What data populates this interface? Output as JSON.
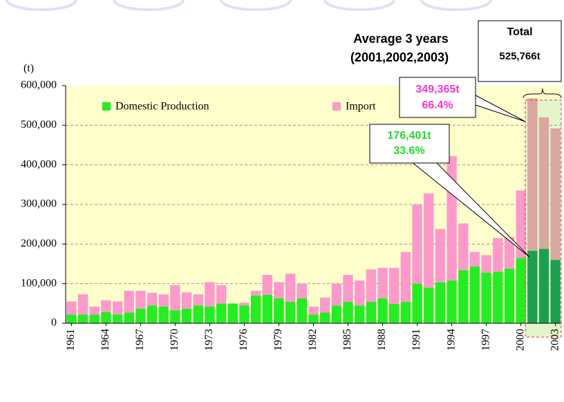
{
  "chart_data": {
    "type": "stacked_bar",
    "y_unit": "(t)",
    "categories": [
      "1961",
      null,
      null,
      "1964",
      null,
      null,
      "1967",
      null,
      null,
      "1970",
      null,
      null,
      "1973",
      null,
      null,
      "1976",
      null,
      null,
      "1979",
      null,
      null,
      "1982",
      null,
      null,
      "1985",
      null,
      null,
      "1988",
      null,
      null,
      "1991",
      null,
      null,
      "1994",
      null,
      null,
      "1997",
      null,
      null,
      "2000",
      null,
      null,
      "2003"
    ],
    "series": [
      {
        "name": "Domestic Production",
        "color": "#22ee22",
        "highlight_color": "#1aa050",
        "values": [
          22000,
          22000,
          22000,
          28000,
          22000,
          27000,
          37000,
          45000,
          42000,
          33000,
          37000,
          45000,
          42000,
          50000,
          50000,
          45000,
          70000,
          72000,
          63000,
          54000,
          63000,
          22000,
          27000,
          45000,
          54000,
          45000,
          54000,
          63000,
          49000,
          54000,
          100000,
          90000,
          103000,
          108000,
          134000,
          143000,
          128000,
          130000,
          138000,
          165000,
          183000,
          188000,
          160000
        ]
      },
      {
        "name": "Import",
        "color": "#ff99cc",
        "highlight_color": "#d9a8a0",
        "values": [
          33000,
          51000,
          20000,
          30000,
          33000,
          55000,
          45000,
          32000,
          31000,
          63000,
          41000,
          28000,
          62000,
          46000,
          0,
          7000,
          12000,
          50000,
          41000,
          71000,
          37000,
          20000,
          38000,
          55000,
          68000,
          63000,
          82000,
          77000,
          91000,
          126000,
          200000,
          238000,
          135000,
          314000,
          118000,
          37000,
          44000,
          85000,
          80000,
          170000,
          385000,
          332000,
          332000
        ]
      }
    ],
    "highlight_range": [
      40,
      42
    ],
    "ylim": [
      0,
      600000
    ],
    "yticks": [
      0,
      {
        "value": 100000,
        "label": "100,000"
      },
      {
        "value": 200000,
        "label": "200,000"
      },
      {
        "value": 300000,
        "label": "300,000"
      },
      {
        "value": 400000,
        "label": "400,000"
      },
      {
        "value": 500000,
        "label": "500,000"
      },
      {
        "value": 600000,
        "label": "600,000"
      }
    ],
    "grid": true,
    "annotations": {
      "average_title": "Average 3 years",
      "average_years": "(2001,2002,2003)",
      "total_title": "Total",
      "total_value": "525,766t",
      "import_value": "349,365t",
      "import_share": "66.4%",
      "domestic_value": "176,401t",
      "domestic_share": "33.6%"
    }
  }
}
